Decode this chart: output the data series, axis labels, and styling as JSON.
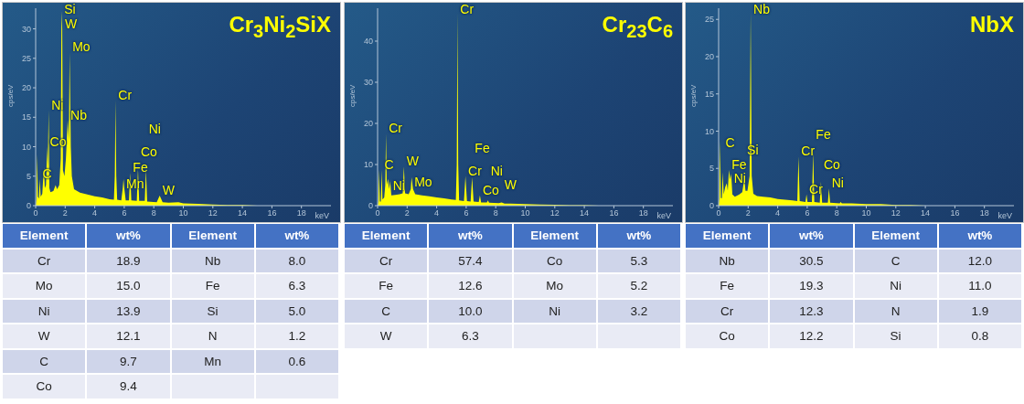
{
  "chart_data": [
    {
      "type": "area",
      "title": "Cr$_{3}$Ni$_{2}$SiX",
      "xlabel": "keV",
      "ylabel": "cps/eV",
      "color": "#ffff00",
      "xlim": [
        0,
        20
      ],
      "xticks": [
        0,
        2,
        4,
        6,
        8,
        10,
        12,
        14,
        16,
        18
      ],
      "ylim": [
        0,
        33.5
      ],
      "yticks": [
        0,
        5,
        10,
        15,
        20,
        25,
        30
      ],
      "x": [
        0,
        0.05,
        0.1,
        0.15,
        0.22,
        0.28,
        0.34,
        0.45,
        0.52,
        0.57,
        0.62,
        0.7,
        0.78,
        0.82,
        0.88,
        0.93,
        1.0,
        1.2,
        1.35,
        1.45,
        1.6,
        1.7,
        1.75,
        1.8,
        1.85,
        1.95,
        2.05,
        2.17,
        2.25,
        2.3,
        2.38,
        2.45,
        2.6,
        3,
        3.5,
        4,
        4.5,
        5,
        5.3,
        5.36,
        5.41,
        5.46,
        5.52,
        5.8,
        5.9,
        5.95,
        6.0,
        6.1,
        6.32,
        6.4,
        6.48,
        6.85,
        6.93,
        7.01,
        7.39,
        7.47,
        7.55,
        8.2,
        8.4,
        8.6,
        9.0,
        9.67,
        10,
        11,
        12,
        13,
        14,
        15,
        20
      ],
      "values": [
        0,
        1,
        8.7,
        1.5,
        1.2,
        4.5,
        1.5,
        2,
        5,
        6.5,
        3,
        3.5,
        10,
        6,
        16.2,
        3,
        2.3,
        2.5,
        3.5,
        2.8,
        3.5,
        8,
        33,
        30,
        6,
        5,
        8,
        14.5,
        11,
        26,
        10,
        5,
        2.8,
        2.2,
        1.9,
        1.6,
        1.4,
        1.1,
        1.0,
        5,
        17.9,
        5,
        1.0,
        0.9,
        3,
        4.5,
        3,
        0.9,
        0.9,
        5.6,
        0.9,
        0.8,
        6.2,
        0.8,
        0.8,
        6.1,
        0.7,
        0.6,
        1.7,
        0.6,
        0.5,
        0.6,
        0.4,
        0.3,
        0.2,
        0.1,
        0.1,
        0,
        0
      ],
      "annotations": [
        {
          "text": "Si",
          "x": 1.75,
          "y": 33
        },
        {
          "text": "W",
          "x": 1.8,
          "y": 30
        },
        {
          "text": "Mo",
          "x": 2.3,
          "y": 26
        },
        {
          "text": "Ni",
          "x": 0.88,
          "y": 16.2
        },
        {
          "text": "Nb",
          "x": 2.17,
          "y": 14.5
        },
        {
          "text": "Co",
          "x": 0.78,
          "y": 10
        },
        {
          "text": "C",
          "x": 0.28,
          "y": 4.5
        },
        {
          "text": "Cr",
          "x": 5.41,
          "y": 17.9
        },
        {
          "text": "Fe",
          "x": 6.4,
          "y": 5.6
        },
        {
          "text": "Mn",
          "x": 5.95,
          "y": 4.5
        },
        {
          "text": "Co",
          "x": 6.93,
          "y": 6.2
        },
        {
          "text": "Ni",
          "x": 7.47,
          "y": 6.1
        },
        {
          "text": "W",
          "x": 8.4,
          "y": 1.7
        }
      ]
    },
    {
      "type": "area",
      "title": "Cr$_{23}$C$_{6}$",
      "xlabel": "keV",
      "ylabel": "cps/eV",
      "color": "#ffff00",
      "xlim": [
        0,
        20
      ],
      "xticks": [
        0,
        2,
        4,
        6,
        8,
        10,
        12,
        14,
        16,
        18
      ],
      "ylim": [
        0,
        48
      ],
      "yticks": [
        0,
        10,
        20,
        30,
        40
      ],
      "x": [
        0,
        0.05,
        0.1,
        0.15,
        0.22,
        0.28,
        0.33,
        0.45,
        0.52,
        0.57,
        0.62,
        0.7,
        0.78,
        0.85,
        0.93,
        1.2,
        1.5,
        1.7,
        1.78,
        1.86,
        2.1,
        2.25,
        2.3,
        2.4,
        2.55,
        3,
        3.5,
        4,
        4.5,
        5,
        5.3,
        5.36,
        5.41,
        5.46,
        5.52,
        5.85,
        5.95,
        6.05,
        6.3,
        6.4,
        6.5,
        6.85,
        6.93,
        7.01,
        7.4,
        7.47,
        7.55,
        8.2,
        8.4,
        8.6,
        9,
        10,
        11,
        12,
        13,
        14,
        15,
        20
      ],
      "values": [
        0,
        1,
        8.8,
        1,
        1,
        8.7,
        1.5,
        2,
        5,
        17.5,
        5,
        6.5,
        4,
        6,
        2.5,
        2.6,
        2.8,
        3,
        9.5,
        3,
        2.8,
        4,
        6.9,
        4,
        2.8,
        2.5,
        2.3,
        2.0,
        1.8,
        1.5,
        1.4,
        10,
        46.9,
        10,
        1.3,
        1.1,
        7.2,
        1.1,
        1.0,
        6.9,
        1.0,
        0.9,
        2.5,
        0.8,
        0.8,
        1.3,
        0.7,
        0.6,
        0.8,
        0.5,
        0.5,
        0.4,
        0.3,
        0.2,
        0.1,
        0.1,
        0,
        0
      ],
      "annotations": [
        {
          "text": "Cr",
          "x": 5.41,
          "y": 46.9
        },
        {
          "text": "Cr",
          "x": 0.57,
          "y": 17.5
        },
        {
          "text": "C",
          "x": 0.28,
          "y": 8.7
        },
        {
          "text": "Ni",
          "x": 0.85,
          "y": 6
        },
        {
          "text": "W",
          "x": 1.78,
          "y": 9.5
        },
        {
          "text": "Mo",
          "x": 2.3,
          "y": 6.9
        },
        {
          "text": "Cr",
          "x": 5.95,
          "y": 7.2
        },
        {
          "text": "Fe",
          "x": 6.4,
          "y": 6.9
        },
        {
          "text": "Co",
          "x": 6.93,
          "y": 2.5
        },
        {
          "text": "Ni",
          "x": 7.47,
          "y": 1.3
        },
        {
          "text": "W",
          "x": 8.4,
          "y": 0.8
        }
      ]
    },
    {
      "type": "area",
      "title": "NbX",
      "xlabel": "keV",
      "ylabel": "cps/eV",
      "color": "#ffff00",
      "xlim": [
        0,
        20
      ],
      "xticks": [
        0,
        2,
        4,
        6,
        8,
        10,
        12,
        14,
        16,
        18
      ],
      "ylim": [
        0,
        26.5
      ],
      "yticks": [
        0,
        5,
        10,
        15,
        20,
        25
      ],
      "x": [
        0,
        0.05,
        0.1,
        0.15,
        0.22,
        0.28,
        0.34,
        0.45,
        0.55,
        0.62,
        0.7,
        0.78,
        0.85,
        0.93,
        1.1,
        1.4,
        1.6,
        1.74,
        1.82,
        1.95,
        2.1,
        2.17,
        2.24,
        2.35,
        2.6,
        3,
        3.5,
        4,
        4.5,
        5,
        5.33,
        5.41,
        5.49,
        5.88,
        5.95,
        6.02,
        6.32,
        6.4,
        6.48,
        6.85,
        6.93,
        7.01,
        7.4,
        7.47,
        7.55,
        8.2,
        8.26,
        8.35,
        9,
        10,
        11,
        12,
        13,
        14,
        15,
        20
      ],
      "values": [
        0,
        1,
        8.7,
        1,
        1,
        4.5,
        1.5,
        2.5,
        3,
        2,
        4.8,
        3.5,
        4.3,
        1.5,
        1.2,
        1.5,
        1.8,
        3.6,
        2,
        2,
        4,
        26,
        4,
        1.6,
        1.3,
        1.2,
        1.1,
        0.9,
        0.8,
        0.7,
        0.6,
        6.6,
        0.6,
        0.5,
        1.5,
        0.5,
        0.5,
        7.2,
        0.5,
        0.4,
        3.2,
        0.4,
        0.4,
        2.3,
        0.4,
        0.3,
        0.5,
        0.3,
        0.3,
        0.2,
        0.2,
        0.1,
        0.1,
        0,
        0,
        0
      ],
      "annotations": [
        {
          "text": "Nb",
          "x": 2.17,
          "y": 26
        },
        {
          "text": "Fe",
          "x": 0.7,
          "y": 4.8
        },
        {
          "text": "C",
          "x": 0.28,
          "y": 4.5
        },
        {
          "text": "Ni",
          "x": 0.85,
          "y": 4.3
        },
        {
          "text": "Si",
          "x": 1.74,
          "y": 3.6
        },
        {
          "text": "Cr",
          "x": 5.41,
          "y": 6.6
        },
        {
          "text": "Fe",
          "x": 6.4,
          "y": 7.2
        },
        {
          "text": "Cr",
          "x": 5.95,
          "y": 1.5
        },
        {
          "text": "Co",
          "x": 6.93,
          "y": 3.2
        },
        {
          "text": "Ni",
          "x": 7.47,
          "y": 2.3
        }
      ]
    },
    {
      "type": "other",
      "xlabel": "Element",
      "ylabel": "wt%",
      "data_labels": true,
      "categories": [
        "Cr",
        "Mo",
        "Ni",
        "W",
        "C",
        "Co",
        "Nb",
        "Fe",
        "Si",
        "N",
        "Mn"
      ],
      "values": [
        18.9,
        15.0,
        13.9,
        12.1,
        9.7,
        9.4,
        8.0,
        6.3,
        5.0,
        1.2,
        0.6
      ],
      "value_labels": [
        "18.9",
        "15.0",
        "13.9",
        "12.1",
        "9.7",
        "9.4",
        "8.0",
        "6.3",
        "5.0",
        "1.2",
        "0.6"
      ]
    },
    {
      "type": "other",
      "xlabel": "Element",
      "ylabel": "wt%",
      "data_labels": true,
      "categories": [
        "Cr",
        "Fe",
        "C",
        "W",
        "Co",
        "Mo",
        "Ni"
      ],
      "values": [
        57.4,
        12.6,
        10.0,
        6.3,
        5.3,
        5.2,
        3.2
      ],
      "value_labels": [
        "57.4",
        "12.6",
        "10.0",
        "6.3",
        "5.3",
        "5.2",
        "3.2"
      ]
    },
    {
      "type": "other",
      "xlabel": "Element",
      "ylabel": "wt%",
      "data_labels": true,
      "categories": [
        "Nb",
        "Fe",
        "Cr",
        "Co",
        "C",
        "Ni",
        "N",
        "Si"
      ],
      "values": [
        30.5,
        19.3,
        12.3,
        12.2,
        12.0,
        11.0,
        1.9,
        0.8
      ],
      "value_labels": [
        "30.5",
        "19.3",
        "12.3",
        "12.2",
        "12.0",
        "11.0",
        "1.9",
        "0.8"
      ]
    }
  ]
}
